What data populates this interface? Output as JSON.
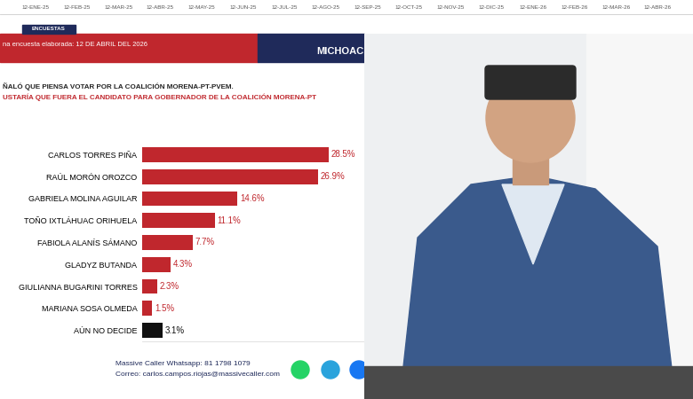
{
  "header": {
    "timeline": [
      "12-ENE-25",
      "12-FEB-25",
      "12-MAR-25",
      "12-ABR-25",
      "12-MAY-25",
      "12-JUN-25",
      "12-JUL-25",
      "12-AGO-25",
      "12-SEP-25",
      "12-OCT-25",
      "12-NOV-25",
      "12-DIC-25",
      "12-ENE-26",
      "12-FEB-26",
      "12-MAR-26",
      "12-ABR-26"
    ],
    "tab": "ENCUESTAS",
    "date_line": "na encuesta elaborada: 12 DE ABRIL DEL 2026",
    "state": "MICHOAC"
  },
  "chart_data": {
    "type": "bar",
    "orientation": "horizontal",
    "title": "ÑALÓ QUE PIENSA VOTAR POR LA COALICIÓN MORENA-PT-PVEM.",
    "subtitle": "USTARÍA QUE FUERA EL CANDIDATO PARA GOBERNADOR DE LA COALICIÓN MORENA-PT",
    "categories": [
      "CARLOS TORRES PIÑA",
      "RAÚL MORÓN OROZCO",
      "GABRIELA MOLINA AGUILAR",
      "TOÑO IXTLÁHUAC ORIHUELA",
      "FABIOLA ALANÍS SÁMANO",
      "GLADYZ BUTANDA",
      "GIULIANNA BUGARINI TORRES",
      "MARIANA SOSA OLMEDA",
      "AÚN NO DECIDE"
    ],
    "values": [
      28.5,
      26.9,
      14.6,
      11.1,
      7.7,
      4.3,
      2.3,
      1.5,
      3.1
    ],
    "value_labels": [
      "28.5%",
      "26.9%",
      "14.6%",
      "11.1%",
      "7.7%",
      "4.3%",
      "2.3%",
      "1.5%",
      "3.1%"
    ],
    "colors": [
      "#c0272d",
      "#c0272d",
      "#c0272d",
      "#c0272d",
      "#c0272d",
      "#c0272d",
      "#c0272d",
      "#c0272d",
      "#111111"
    ],
    "xlim": [
      0,
      34
    ],
    "xticks": [],
    "data_labels": true,
    "tick_labels": "y"
  },
  "footer": {
    "whatsapp": "Massive Caller Whatsapp: 81 1798 1079",
    "email": "Correo: carlos.campos.riojas@massivecaller.com"
  }
}
